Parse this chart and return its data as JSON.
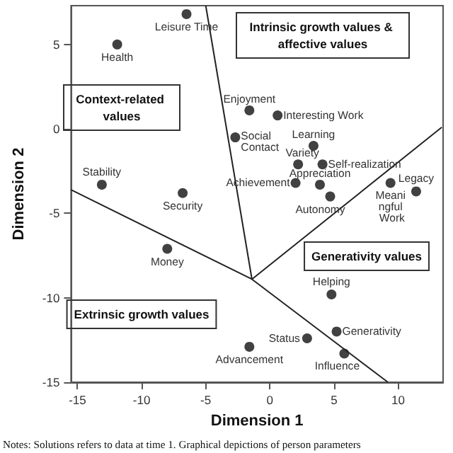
{
  "chart_data": {
    "type": "scatter",
    "xlabel": "Dimension 1",
    "ylabel": "Dimension 2",
    "xlim": [
      -15.5,
      13.5
    ],
    "ylim": [
      -15,
      7.3
    ],
    "xticks": [
      -15,
      -10,
      -5,
      0,
      5,
      10
    ],
    "yticks": [
      -15,
      -10,
      -5,
      0,
      5
    ],
    "grid": false,
    "marker": "circle",
    "series": [
      {
        "color": "#111111",
        "x": [
          -6.5,
          -11.9,
          -13.1,
          -6.8,
          -2.7,
          -1.6,
          0.6,
          3.4,
          2.2,
          4.1,
          2.0,
          3.9,
          4.7,
          9.4,
          11.4,
          -8.0,
          -1.6,
          2.9,
          5.2,
          4.8,
          5.8
        ],
        "values": [
          6.8,
          5.0,
          -3.3,
          -3.8,
          -0.5,
          1.1,
          0.8,
          -1.0,
          -2.1,
          -2.1,
          -3.2,
          -3.3,
          -4.0,
          -3.2,
          -3.7,
          -7.1,
          -12.9,
          -12.4,
          -12.0,
          -9.8,
          -13.3
        ]
      },
      {
        "type": "line",
        "color": "#222222",
        "marker": "none",
        "x": [
          -5.0,
          -1.4,
          13.4,
          null,
          -15.5,
          -1.4,
          9.2
        ],
        "values": [
          7.3,
          -8.9,
          0.1,
          null,
          -3.6,
          -8.9,
          -15
        ]
      }
    ],
    "annotations": [
      {
        "text": "Leisure Time",
        "x": -6.5,
        "y": 6.8
      },
      {
        "text": "Health",
        "x": -11.9,
        "y": 5.0
      },
      {
        "text": "Stability",
        "x": -13.1,
        "y": -3.3
      },
      {
        "text": "Security",
        "x": -6.8,
        "y": -3.8
      },
      {
        "text": "Social Contact",
        "x": -2.7,
        "y": -0.5
      },
      {
        "text": "Enjoyment",
        "x": -1.6,
        "y": 1.1
      },
      {
        "text": "Interesting Work",
        "x": 0.6,
        "y": 0.8
      },
      {
        "text": "Learning",
        "x": 3.4,
        "y": -1.0
      },
      {
        "text": "Variety",
        "x": 2.2,
        "y": -2.1
      },
      {
        "text": "Self-realization",
        "x": 4.1,
        "y": -2.1
      },
      {
        "text": "Achievement",
        "x": 2.0,
        "y": -3.2
      },
      {
        "text": "Appreciation",
        "x": 3.9,
        "y": -3.3
      },
      {
        "text": "Autonomy",
        "x": 4.7,
        "y": -4.0
      },
      {
        "text": "Meaningful Work",
        "x": 9.4,
        "y": -3.2
      },
      {
        "text": "Legacy",
        "x": 11.4,
        "y": -3.7
      },
      {
        "text": "Money",
        "x": -8.0,
        "y": -7.1
      },
      {
        "text": "Advancement",
        "x": -1.6,
        "y": -12.9
      },
      {
        "text": "Status",
        "x": 2.9,
        "y": -12.4
      },
      {
        "text": "Generativity",
        "x": 5.2,
        "y": -12.0
      },
      {
        "text": "Helping",
        "x": 4.8,
        "y": -9.8
      },
      {
        "text": "Influence",
        "x": 5.8,
        "y": -13.3
      },
      "Context-related values",
      "Intrinsic growth values & affective values",
      "Generativity values",
      "Extrinsic growth values",
      "Notes: Solutions refers to data at time 1. Graphical depictions of person parameters"
    ]
  }
}
